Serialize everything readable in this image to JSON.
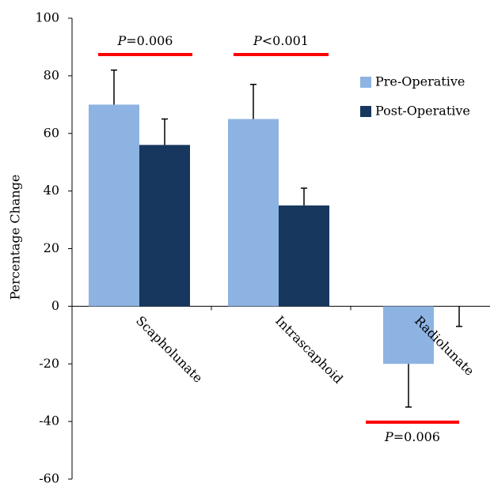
{
  "chart_data": {
    "type": "bar",
    "y_axis_label": "Percentage Change",
    "categories": [
      "Scapholunate",
      "Intrascaphoid",
      "Radiolunate"
    ],
    "series": [
      {
        "name": "Pre-Operative",
        "color": "#8db3e2",
        "values": [
          70,
          65,
          -20
        ],
        "errors": [
          12,
          12,
          15
        ]
      },
      {
        "name": "Post-Operative",
        "color": "#17375e",
        "values": [
          56,
          35,
          0
        ],
        "errors": [
          9,
          6,
          7
        ]
      }
    ],
    "ylim": [
      -60,
      100
    ],
    "yticks": [
      -60,
      -40,
      -20,
      0,
      20,
      40,
      60,
      80,
      100
    ],
    "annotations": [
      "P=0.006",
      "P<0.001",
      "P=0.006"
    ],
    "annotation_color": "#ff0000",
    "legend": "upper right"
  }
}
